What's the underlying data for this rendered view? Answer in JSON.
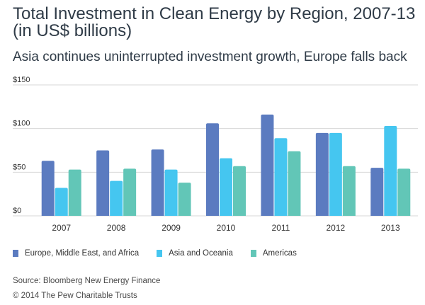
{
  "header": {
    "title": "Total Investment in Clean Energy by Region, 2007-13 (in US$ billions)",
    "subtitle": "Asia continues uninterrupted investment growth, Europe falls back"
  },
  "footer": {
    "source": "Source: Bloomberg New Energy Finance",
    "credit": "© 2014 The Pew Charitable Trusts"
  },
  "chart_data": {
    "type": "bar",
    "title": "Total Investment in Clean Energy by Region, 2007-13 (in US$ billions)",
    "subtitle": "Asia continues uninterrupted investment growth, Europe falls back",
    "categories": [
      "2007",
      "2008",
      "2009",
      "2010",
      "2011",
      "2012",
      "2013"
    ],
    "series": [
      {
        "name": "Europe, Middle East, and Africa",
        "color": "#5b7bc0",
        "values": [
          63,
          75,
          76,
          106,
          116,
          95,
          55
        ]
      },
      {
        "name": "Asia and Oceania",
        "color": "#45c6f0",
        "values": [
          32,
          40,
          53,
          66,
          89,
          95,
          103
        ]
      },
      {
        "name": "Americas",
        "color": "#62c6b7",
        "values": [
          53,
          54,
          38,
          57,
          74,
          57,
          54
        ]
      }
    ],
    "y_ticks": [
      "$0",
      "$50",
      "$100",
      "$150"
    ],
    "ylim": [
      0,
      150
    ],
    "xlabel": "",
    "ylabel": "",
    "grid": true,
    "legend_position": "bottom-left"
  }
}
